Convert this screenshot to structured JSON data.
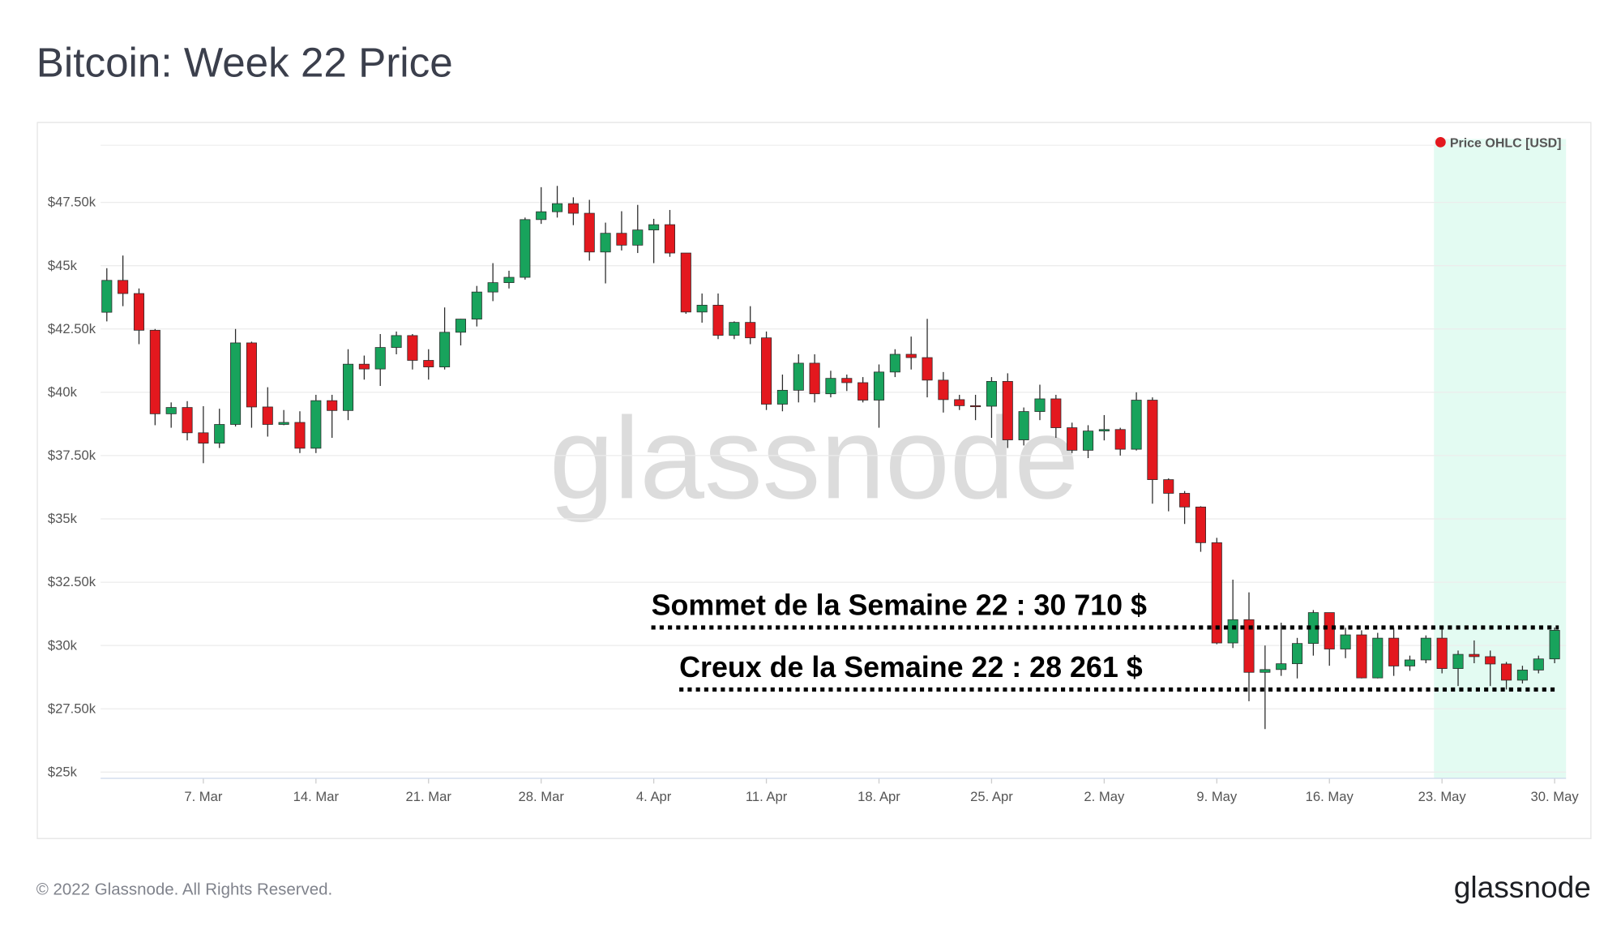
{
  "chart_data": {
    "type": "candlestick",
    "title": "Bitcoin: Week 22 Price",
    "categories": [
      null,
      null,
      null,
      null,
      null,
      null,
      "7. Mar",
      null,
      null,
      null,
      null,
      null,
      null,
      "14. Mar",
      null,
      null,
      null,
      null,
      null,
      null,
      "21. Mar",
      null,
      null,
      null,
      null,
      null,
      null,
      "28. Mar",
      null,
      null,
      null,
      null,
      null,
      null,
      "4. Apr",
      null,
      null,
      null,
      null,
      null,
      null,
      "11. Apr",
      null,
      null,
      null,
      null,
      null,
      null,
      "18. Apr",
      null,
      null,
      null,
      null,
      null,
      null,
      "25. Apr",
      null,
      null,
      null,
      null,
      null,
      null,
      "2. May",
      null,
      null,
      null,
      null,
      null,
      null,
      "9. May",
      null,
      null,
      null,
      null,
      null,
      null,
      "16. May",
      null,
      null,
      null,
      null,
      null,
      null,
      "23. May",
      null,
      null,
      null,
      null,
      null,
      null,
      "30. May"
    ],
    "series": [
      {
        "name": "Price OHLC [USD]",
        "color": "#e3181e",
        "up_color": "#18a35c",
        "open": [
          43160,
          44420,
          43900,
          42450,
          39150,
          39400,
          38400,
          37990,
          38730,
          41950,
          39420,
          38730,
          38810,
          37790,
          39670,
          39280,
          41110,
          40920,
          41770,
          42240,
          41260,
          41000,
          42370,
          42890,
          43960,
          44330,
          44540,
          46820,
          47130,
          47450,
          47070,
          45540,
          46280,
          45810,
          46410,
          46620,
          45500,
          43170,
          43440,
          42250,
          42760,
          42150,
          39530,
          40080,
          41150,
          39940,
          40550,
          40380,
          39690,
          40800,
          41500,
          41370,
          40480,
          39710,
          39470,
          39450,
          40430,
          38120,
          39240,
          39740,
          38600,
          37710,
          38470,
          38530,
          37750,
          39690,
          36550,
          36010,
          35470,
          34060,
          30100,
          31020,
          28940,
          29050,
          29280,
          30080,
          31300,
          29860,
          30420,
          28720,
          30290,
          29190,
          29430,
          30290,
          29090,
          29650,
          29560,
          29270,
          28630,
          29030,
          29470
        ],
        "high": [
          44900,
          45400,
          44100,
          42500,
          39600,
          39650,
          39450,
          39350,
          42500,
          42000,
          40200,
          39300,
          39250,
          39900,
          39900,
          41700,
          41450,
          42300,
          42400,
          42300,
          41700,
          43350,
          42900,
          44200,
          45100,
          44800,
          46900,
          48100,
          48150,
          47700,
          47600,
          46700,
          47150,
          47400,
          46850,
          47200,
          45500,
          43900,
          43900,
          42800,
          43400,
          42400,
          40700,
          41500,
          41500,
          40850,
          40700,
          40600,
          41100,
          41700,
          42200,
          42900,
          40800,
          39900,
          39900,
          40600,
          40750,
          39400,
          40300,
          39900,
          38800,
          38700,
          39100,
          38600,
          40000,
          39800,
          36600,
          36100,
          35500,
          34250,
          32600,
          32100,
          30000,
          30900,
          30300,
          31400,
          31300,
          30700,
          30600,
          30500,
          30700,
          29600,
          30400,
          30650,
          29800,
          30200,
          29800,
          29350,
          29200,
          29600,
          30710
        ],
        "low": [
          42800,
          43400,
          41900,
          38700,
          38600,
          38100,
          37200,
          37800,
          38650,
          38600,
          38250,
          38700,
          37600,
          37600,
          38200,
          38900,
          40500,
          40250,
          41500,
          40900,
          40500,
          40900,
          41850,
          42600,
          43600,
          44100,
          44450,
          46650,
          46900,
          46600,
          45200,
          44300,
          45600,
          45500,
          45100,
          45350,
          43100,
          42750,
          42100,
          42100,
          41900,
          39300,
          39250,
          39600,
          39600,
          39800,
          40050,
          39600,
          38600,
          40600,
          40900,
          39800,
          39200,
          39300,
          38900,
          38200,
          37800,
          37900,
          38900,
          38200,
          37600,
          37400,
          38100,
          37500,
          37700,
          35600,
          35300,
          34800,
          33700,
          30050,
          29900,
          27800,
          26700,
          28800,
          28700,
          29600,
          29200,
          29500,
          28700,
          28700,
          28800,
          29000,
          29300,
          28900,
          28400,
          29300,
          28400,
          28261,
          28500,
          28900,
          29300
        ],
        "close": [
          44420,
          43900,
          42450,
          39150,
          39400,
          38400,
          37990,
          38730,
          41950,
          39420,
          38730,
          38810,
          37790,
          39670,
          39280,
          41110,
          40920,
          41770,
          42240,
          41260,
          41000,
          42370,
          42890,
          43960,
          44330,
          44540,
          46820,
          47130,
          47450,
          47070,
          45540,
          46280,
          45810,
          46410,
          46620,
          45500,
          43170,
          43440,
          42250,
          42760,
          42150,
          39530,
          40080,
          41150,
          39940,
          40550,
          40380,
          39690,
          40800,
          41500,
          41370,
          40480,
          39710,
          39470,
          39450,
          40430,
          38120,
          39240,
          39740,
          38600,
          37710,
          38470,
          38530,
          37750,
          39690,
          36550,
          36010,
          35470,
          34060,
          30100,
          31020,
          28940,
          29050,
          29280,
          30080,
          31300,
          29860,
          30420,
          28720,
          30290,
          29190,
          29430,
          30290,
          29090,
          29650,
          29560,
          29270,
          28630,
          29030,
          29470,
          30600
        ]
      }
    ],
    "ylim": [
      25000,
      50000
    ],
    "yticks": [
      {
        "value": 25000,
        "label": "$25k"
      },
      {
        "value": 27500,
        "label": "$27.50k"
      },
      {
        "value": 30000,
        "label": "$30k"
      },
      {
        "value": 32500,
        "label": "$32.50k"
      },
      {
        "value": 35000,
        "label": "$35k"
      },
      {
        "value": 37500,
        "label": "$37.50k"
      },
      {
        "value": 40000,
        "label": "$40k"
      },
      {
        "value": 42500,
        "label": "$42.50k"
      },
      {
        "value": 45000,
        "label": "$45k"
      },
      {
        "value": 47500,
        "label": "$47.50k"
      }
    ],
    "grid": true,
    "legend": "top-right",
    "annotations": [
      {
        "text": "Sommet de la Semaine 22 : 30 710 $",
        "value": 30710
      },
      {
        "text": "Creux de la Semaine 22 : 28 261 $",
        "value": 28261
      }
    ],
    "watermark": "glassnode",
    "footer": "© 2022 Glassnode. All Rights Reserved.",
    "logo": "glassnode"
  }
}
